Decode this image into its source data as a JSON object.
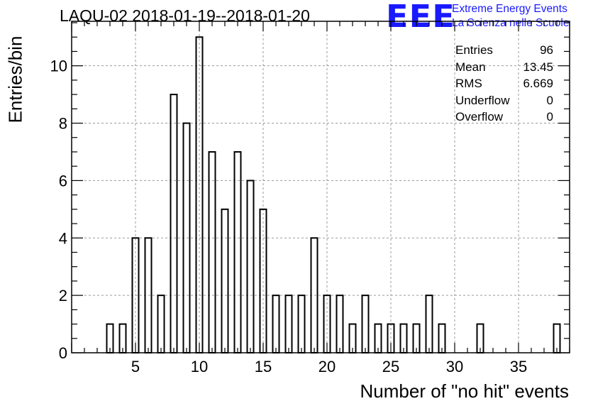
{
  "title": "LAQU-02 2018-01-19--2018-01-20",
  "logo": {
    "mark": "EEE",
    "line1": "Extreme Energy Events",
    "line2": "La Scienza nelle Scuole",
    "color": "#1a1aff"
  },
  "stats": [
    {
      "label": "Entries",
      "value": "96"
    },
    {
      "label": "Mean",
      "value": "13.45"
    },
    {
      "label": "RMS",
      "value": "6.669"
    },
    {
      "label": "Underflow",
      "value": "0"
    },
    {
      "label": "Overflow",
      "value": "0"
    }
  ],
  "chart_data": {
    "type": "bar",
    "histogram": true,
    "xlabel": "Number of \"no hit\" events",
    "ylabel": "Entries/bin",
    "xlim": [
      0,
      39
    ],
    "ylim": [
      0,
      11.55
    ],
    "bin_width": 0.5,
    "xticks": [
      5,
      10,
      15,
      20,
      25,
      30,
      35
    ],
    "yticks": [
      0,
      2,
      4,
      6,
      8,
      10
    ],
    "grid": true,
    "bins": [
      {
        "x": 3,
        "y": 1
      },
      {
        "x": 4,
        "y": 1
      },
      {
        "x": 5,
        "y": 4
      },
      {
        "x": 6,
        "y": 4
      },
      {
        "x": 7,
        "y": 2
      },
      {
        "x": 8,
        "y": 9
      },
      {
        "x": 9,
        "y": 8
      },
      {
        "x": 10,
        "y": 11
      },
      {
        "x": 11,
        "y": 7
      },
      {
        "x": 12,
        "y": 5
      },
      {
        "x": 13,
        "y": 7
      },
      {
        "x": 14,
        "y": 6
      },
      {
        "x": 15,
        "y": 5
      },
      {
        "x": 16,
        "y": 2
      },
      {
        "x": 17,
        "y": 2
      },
      {
        "x": 18,
        "y": 2
      },
      {
        "x": 19,
        "y": 4
      },
      {
        "x": 20,
        "y": 2
      },
      {
        "x": 21,
        "y": 2
      },
      {
        "x": 22,
        "y": 1
      },
      {
        "x": 23,
        "y": 2
      },
      {
        "x": 24,
        "y": 1
      },
      {
        "x": 25,
        "y": 1
      },
      {
        "x": 26,
        "y": 1
      },
      {
        "x": 27,
        "y": 1
      },
      {
        "x": 28,
        "y": 2
      },
      {
        "x": 29,
        "y": 1
      },
      {
        "x": 32,
        "y": 1
      },
      {
        "x": 38,
        "y": 1
      }
    ]
  }
}
